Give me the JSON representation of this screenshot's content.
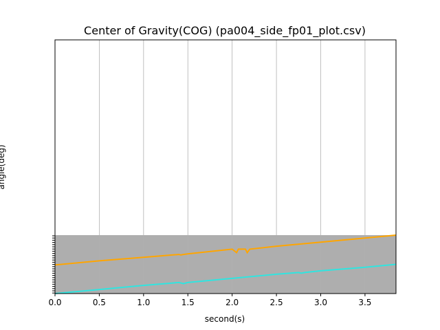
{
  "chart_data": {
    "type": "line",
    "title": "Center of Gravity(COG) (pa004_side_fp01_plot.csv)",
    "xlabel": "second(s)",
    "ylabel": "angle(deg)",
    "xlim": [
      0,
      3.85
    ],
    "x_ticks": [
      0.0,
      0.5,
      1.0,
      1.5,
      2.0,
      2.5,
      3.0,
      3.5
    ],
    "x_tick_labels": [
      "0.0",
      "0.5",
      "1.0",
      "1.5",
      "2.0",
      "2.5",
      "3.0",
      "3.5"
    ],
    "grid": "vertical",
    "band_color": "#aeaeae",
    "series": [
      {
        "color": "#ffa500",
        "x": [
          0.0,
          0.5,
          1.0,
          1.4,
          1.42,
          1.45,
          1.5,
          2.0,
          2.05,
          2.07,
          2.1,
          2.15,
          2.17,
          2.2,
          2.5,
          3.0,
          3.5,
          3.85
        ],
        "y": [
          0.49,
          0.56,
          0.62,
          0.67,
          0.66,
          0.67,
          0.68,
          0.76,
          0.7,
          0.76,
          0.76,
          0.76,
          0.7,
          0.76,
          0.81,
          0.88,
          0.95,
          1.0
        ]
      },
      {
        "color": "#2fe5e0",
        "x": [
          0.0,
          0.5,
          1.0,
          1.4,
          1.45,
          1.5,
          2.0,
          2.5,
          2.75,
          2.78,
          2.82,
          3.0,
          3.5,
          3.85
        ],
        "y": [
          0.0,
          0.07,
          0.14,
          0.19,
          0.17,
          0.19,
          0.26,
          0.33,
          0.36,
          0.35,
          0.36,
          0.39,
          0.45,
          0.5
        ]
      }
    ]
  }
}
